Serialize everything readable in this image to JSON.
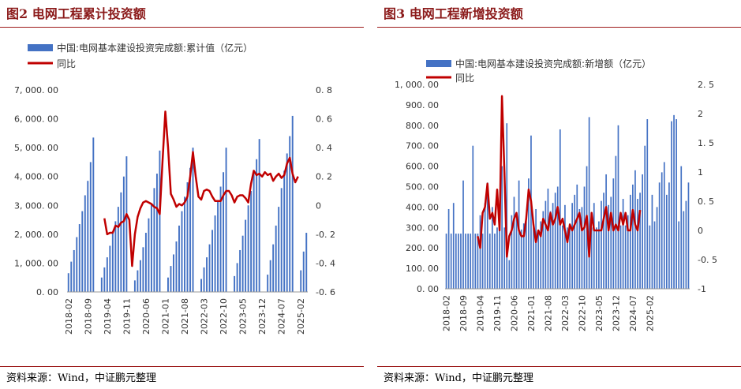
{
  "left_panel": {
    "title": "图2  电网工程累计投资额",
    "source": "资料来源：Wind，中证鹏元整理"
  },
  "right_panel": {
    "title": "图3  电网工程新增投资额",
    "source": "资料来源：Wind，中证鹏元整理"
  },
  "colors": {
    "bar": "#4472c4",
    "line": "#c00000",
    "rule": "#9e1b1b"
  },
  "chart_data": [
    {
      "type": "bar",
      "title": "图2  电网工程累计投资额",
      "series": [
        {
          "name": "中国:电网基本建设投资完成额:累计值（亿元）",
          "kind": "bar",
          "axis": "left",
          "start": "2018-01",
          "values": [
            0,
            650,
            1050,
            1450,
            1900,
            2350,
            2800,
            3350,
            3850,
            4500,
            5350,
            0,
            0,
            500,
            850,
            1200,
            1600,
            2050,
            2450,
            2950,
            3450,
            4000,
            4700,
            0,
            0,
            400,
            750,
            1100,
            1550,
            2050,
            2550,
            3050,
            3600,
            4100,
            4900,
            0,
            0,
            500,
            900,
            1300,
            1750,
            2300,
            2800,
            3300,
            3800,
            4300,
            5000,
            0,
            0,
            450,
            850,
            1200,
            1650,
            2150,
            2650,
            3150,
            3650,
            4150,
            5000,
            0,
            0,
            550,
            1000,
            1450,
            1950,
            2500,
            3000,
            3500,
            4100,
            4600,
            5300,
            0,
            0,
            600,
            1100,
            1650,
            2300,
            2950,
            3600,
            4200,
            4800,
            5400,
            6100,
            0,
            0,
            750,
            1400,
            2050
          ]
        },
        {
          "name": "同比",
          "kind": "line",
          "axis": "right",
          "start": "2019-03",
          "values": [
            -0.09,
            -0.2,
            -0.19,
            -0.19,
            -0.14,
            -0.15,
            -0.12,
            -0.11,
            -0.06,
            -0.1,
            -0.42,
            -0.2,
            -0.08,
            -0.02,
            0.02,
            0.03,
            0.02,
            0.01,
            -0.01,
            -0.02,
            -0.06,
            0.3,
            0.65,
            0.4,
            0.08,
            0.04,
            -0.01,
            0.01,
            0.0,
            0.02,
            0.06,
            0.2,
            0.37,
            0.2,
            0.06,
            0.04,
            0.1,
            0.11,
            0.1,
            0.06,
            0.03,
            0.03,
            0.03,
            0.07,
            0.1,
            0.1,
            0.07,
            0.02,
            0.06,
            0.07,
            0.07,
            0.05,
            0.02,
            0.15,
            0.24,
            0.21,
            0.22,
            0.2,
            0.23,
            0.21,
            0.22,
            0.17,
            0.2,
            0.22,
            0.19,
            0.21,
            0.29,
            0.33,
            0.22,
            0.16,
            0.2
          ]
        }
      ],
      "x_ticks": [
        "2018-02",
        "2018-09",
        "2019-04",
        "2019-11",
        "2020-06",
        "2021-01",
        "2021-08",
        "2022-03",
        "2022-10",
        "2023-05",
        "2023-12",
        "2024-07",
        "2025-02"
      ],
      "y_left_ticks": [
        "0. 00",
        "1, 000. 00",
        "2, 000. 00",
        "3, 000. 00",
        "4, 000. 00",
        "5, 000. 00",
        "6, 000. 00",
        "7, 000. 00"
      ],
      "y_right_ticks": [
        "-0. 6",
        "-0. 4",
        "-0. 2",
        "0",
        "0. 2",
        "0. 4",
        "0. 6",
        "0. 8"
      ],
      "ylim_left": [
        0,
        7000
      ],
      "ylim_right": [
        -0.6,
        0.8
      ],
      "legend_position": "top"
    },
    {
      "type": "bar",
      "title": "图3  电网工程新增投资额",
      "series": [
        {
          "name": "中国:电网基本建设投资完成额:新增额（亿元）",
          "kind": "bar",
          "axis": "left",
          "start": "2018-02",
          "values": [
            270,
            390,
            270,
            420,
            270,
            270,
            270,
            530,
            270,
            270,
            270,
            700,
            270,
            270,
            360,
            270,
            420,
            520,
            270,
            400,
            270,
            300,
            410,
            600,
            300,
            810,
            140,
            360,
            450,
            370,
            530,
            290,
            320,
            330,
            540,
            750,
            300,
            390,
            280,
            330,
            380,
            430,
            490,
            380,
            420,
            470,
            500,
            780,
            310,
            410,
            300,
            320,
            420,
            460,
            510,
            390,
            400,
            500,
            600,
            840,
            300,
            420,
            300,
            330,
            430,
            470,
            560,
            410,
            450,
            540,
            650,
            800,
            310,
            440,
            310,
            360,
            460,
            510,
            580,
            440,
            470,
            560,
            700,
            830,
            310,
            460,
            330,
            400,
            520,
            570,
            620,
            460,
            520,
            820,
            850,
            830,
            330,
            600,
            380,
            430,
            520
          ]
        },
        {
          "name": "同比",
          "kind": "line",
          "axis": "right",
          "start": "2019-03",
          "values": [
            -0.1,
            -0.3,
            0.3,
            0.4,
            0.8,
            0.2,
            0.3,
            0.1,
            0.7,
            0.0,
            2.3,
            1.0,
            -0.45,
            -0.1,
            0.0,
            0.2,
            0.3,
            0.0,
            -0.1,
            -0.1,
            0.2,
            0.7,
            0.5,
            0.1,
            -0.2,
            0.0,
            -0.1,
            0.2,
            0.1,
            0.0,
            0.3,
            0.1,
            0.2,
            0.4,
            0.1,
            0.2,
            0.0,
            -0.2,
            0.1,
            0.0,
            0.1,
            0.2,
            0.3,
            0.0,
            0.05,
            0.25,
            -0.45,
            0.3,
            0.0,
            0.0,
            0.0,
            0.0,
            0.2,
            0.4,
            0.0,
            0.3,
            0.0,
            0.1,
            0.0,
            0.3,
            0.1,
            0.3,
            0.0,
            0.0,
            0.35,
            0.1,
            0.0,
            0.35
          ]
        }
      ],
      "x_ticks": [
        "2018-02",
        "2018-09",
        "2019-04",
        "2019-11",
        "2020-06",
        "2021-01",
        "2021-08",
        "2022-03",
        "2022-10",
        "2023-05",
        "2023-12",
        "2024-07",
        "2025-02"
      ],
      "y_left_ticks": [
        "0. 00",
        "100. 00",
        "200. 00",
        "300. 00",
        "400. 00",
        "500. 00",
        "600. 00",
        "700. 00",
        "800. 00",
        "900. 00",
        "1, 000. 00"
      ],
      "y_right_ticks": [
        "-1",
        "-0. 5",
        "0",
        "0. 5",
        "1",
        "1. 5",
        "2",
        "2. 5"
      ],
      "ylim_left": [
        0,
        1000
      ],
      "ylim_right": [
        -1,
        2.5
      ],
      "legend_position": "top"
    }
  ]
}
